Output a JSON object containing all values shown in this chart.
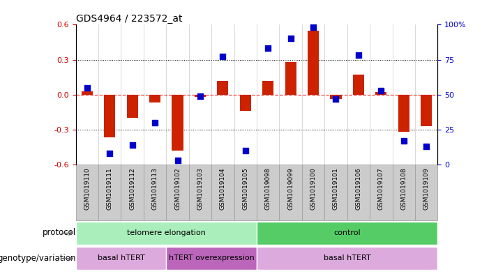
{
  "title": "GDS4964 / 223572_at",
  "samples": [
    "GSM1019110",
    "GSM1019111",
    "GSM1019112",
    "GSM1019113",
    "GSM1019102",
    "GSM1019103",
    "GSM1019104",
    "GSM1019105",
    "GSM1019098",
    "GSM1019099",
    "GSM1019100",
    "GSM1019101",
    "GSM1019106",
    "GSM1019107",
    "GSM1019108",
    "GSM1019109"
  ],
  "transformed_count": [
    0.03,
    -0.37,
    -0.2,
    -0.07,
    -0.48,
    -0.02,
    0.12,
    -0.14,
    0.12,
    0.28,
    0.55,
    -0.04,
    0.17,
    0.02,
    -0.32,
    -0.27
  ],
  "percentile_rank": [
    55,
    8,
    14,
    30,
    3,
    49,
    77,
    10,
    83,
    90,
    98,
    47,
    78,
    53,
    17,
    13
  ],
  "ylim_left": [
    -0.6,
    0.6
  ],
  "ylim_right": [
    0,
    100
  ],
  "yticks_left": [
    -0.6,
    -0.3,
    0.0,
    0.3,
    0.6
  ],
  "yticks_right": [
    0,
    25,
    50,
    75,
    100
  ],
  "ytick_labels_right": [
    "0",
    "25",
    "50",
    "75",
    "100%"
  ],
  "hline_zero_color": "#ff4444",
  "hline_dotted_values": [
    0.3,
    -0.3
  ],
  "bar_color": "#cc2200",
  "dot_color": "#0000cc",
  "bar_width": 0.5,
  "dot_size": 40,
  "protocol_groups": [
    {
      "label": "telomere elongation",
      "start": 0,
      "end": 7,
      "color": "#aaeebb"
    },
    {
      "label": "control",
      "start": 8,
      "end": 15,
      "color": "#55cc66"
    }
  ],
  "genotype_groups": [
    {
      "label": "basal hTERT",
      "start": 0,
      "end": 3,
      "color": "#ddaadd"
    },
    {
      "label": "hTERT overexpression",
      "start": 4,
      "end": 7,
      "color": "#bb66bb"
    },
    {
      "label": "basal hTERT",
      "start": 8,
      "end": 15,
      "color": "#ddaadd"
    }
  ],
  "bg_color": "#ffffff",
  "tick_color_left": "#cc0000",
  "tick_color_right": "#0000cc",
  "sample_bg_color": "#cccccc",
  "sample_border_color": "#999999",
  "protocol_label": "protocol",
  "genotype_label": "genotype/variation"
}
